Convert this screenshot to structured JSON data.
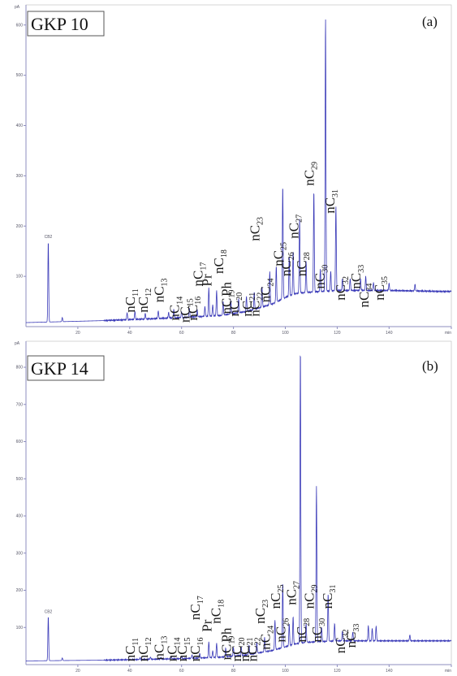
{
  "chart_data": [
    {
      "type": "line",
      "sample_label": "GKP 10",
      "panel_letter": "(a)",
      "y_unit": "pA",
      "x_ticks": [
        "20",
        "40",
        "60",
        "80",
        "100",
        "120",
        "140",
        "min"
      ],
      "y_ticks": [
        "100",
        "200",
        "300",
        "400",
        "500",
        "600"
      ],
      "xlim": [
        0,
        164
      ],
      "ylim": [
        0,
        640
      ],
      "standard_label": "CB2",
      "standard_peak": {
        "x": 8.6,
        "y": 170
      },
      "baseline": [
        [
          0,
          8
        ],
        [
          30,
          12
        ],
        [
          60,
          18
        ],
        [
          75,
          22
        ],
        [
          85,
          30
        ],
        [
          95,
          45
        ],
        [
          100,
          58
        ],
        [
          104,
          66
        ],
        [
          108,
          68
        ],
        [
          120,
          72
        ],
        [
          140,
          72
        ],
        [
          160,
          70
        ],
        [
          164,
          70
        ]
      ],
      "peaks": [
        {
          "x": 8.6,
          "y": 170
        },
        {
          "x": 14,
          "y": 18
        },
        {
          "x": 39,
          "y": 28
        },
        {
          "x": 42,
          "y": 30
        },
        {
          "x": 46,
          "y": 26
        },
        {
          "x": 51,
          "y": 32
        },
        {
          "x": 55,
          "y": 28
        },
        {
          "x": 57,
          "y": 34
        },
        {
          "x": 60,
          "y": 30
        },
        {
          "x": 63,
          "y": 36
        },
        {
          "x": 66,
          "y": 34
        },
        {
          "x": 69,
          "y": 40
        },
        {
          "x": 70.5,
          "y": 78
        },
        {
          "x": 72,
          "y": 44
        },
        {
          "x": 73.5,
          "y": 72
        },
        {
          "x": 76,
          "y": 50
        },
        {
          "x": 79,
          "y": 52
        },
        {
          "x": 82,
          "y": 56
        },
        {
          "x": 85,
          "y": 60
        },
        {
          "x": 88,
          "y": 68
        },
        {
          "x": 91,
          "y": 80
        },
        {
          "x": 94,
          "y": 110
        },
        {
          "x": 96.5,
          "y": 120
        },
        {
          "x": 99,
          "y": 280
        },
        {
          "x": 101.5,
          "y": 140
        },
        {
          "x": 103,
          "y": 150
        },
        {
          "x": 105.5,
          "y": 215
        },
        {
          "x": 108,
          "y": 130
        },
        {
          "x": 111,
          "y": 270
        },
        {
          "x": 113.5,
          "y": 115
        },
        {
          "x": 115.5,
          "y": 615
        },
        {
          "x": 117.5,
          "y": 110
        },
        {
          "x": 119.5,
          "y": 240
        },
        {
          "x": 122,
          "y": 95
        },
        {
          "x": 125,
          "y": 96
        },
        {
          "x": 129,
          "y": 95
        },
        {
          "x": 131,
          "y": 100
        },
        {
          "x": 134,
          "y": 88
        },
        {
          "x": 140,
          "y": 86
        },
        {
          "x": 150,
          "y": 84
        }
      ],
      "annotations": [
        {
          "main": "nC",
          "sub": "11",
          "x": 42,
          "y": 28
        },
        {
          "main": "nC",
          "sub": "12",
          "x": 47,
          "y": 28
        },
        {
          "main": "nC",
          "sub": "13",
          "x": 53,
          "y": 48
        },
        {
          "main": "nC",
          "sub": "14",
          "x": 59,
          "y": 12
        },
        {
          "main": "nC",
          "sub": "15",
          "x": 63,
          "y": 8
        },
        {
          "main": "nC",
          "sub": "16",
          "x": 66,
          "y": 12
        },
        {
          "main": "nC",
          "sub": "17",
          "x": 68,
          "y": 80
        },
        {
          "main": "Pr",
          "sub": "",
          "x": 71.5,
          "y": 80
        },
        {
          "main": "nC",
          "sub": "18",
          "x": 76,
          "y": 105
        },
        {
          "main": "Ph",
          "sub": "",
          "x": 79,
          "y": 60
        },
        {
          "main": "nC",
          "sub": "19",
          "x": 79,
          "y": 25
        },
        {
          "main": "nC",
          "sub": "20",
          "x": 82,
          "y": 20
        },
        {
          "main": "nC",
          "sub": "21",
          "x": 87,
          "y": 20
        },
        {
          "main": "nC",
          "sub": "22",
          "x": 90,
          "y": 20
        },
        {
          "main": "nC",
          "sub": "23",
          "x": 90,
          "y": 170
        },
        {
          "main": "nC",
          "sub": "24",
          "x": 94,
          "y": 48
        },
        {
          "main": "nC",
          "sub": "25",
          "x": 99,
          "y": 120
        },
        {
          "main": "nC",
          "sub": "26",
          "x": 102,
          "y": 100
        },
        {
          "main": "nC",
          "sub": "27",
          "x": 105,
          "y": 175
        },
        {
          "main": "nC",
          "sub": "28",
          "x": 108,
          "y": 100
        },
        {
          "main": "nC",
          "sub": "29",
          "x": 111,
          "y": 280
        },
        {
          "main": "nC",
          "sub": "30",
          "x": 115,
          "y": 75
        },
        {
          "main": "nC",
          "sub": "31",
          "x": 119,
          "y": 225
        },
        {
          "main": "nC",
          "sub": "32",
          "x": 123,
          "y": 52
        },
        {
          "main": "nC",
          "sub": "33",
          "x": 129,
          "y": 75
        },
        {
          "main": "nC",
          "sub": "34",
          "x": 132,
          "y": 38
        },
        {
          "main": "nC",
          "sub": "35",
          "x": 138,
          "y": 52
        }
      ]
    },
    {
      "type": "line",
      "sample_label": "GKP 14",
      "panel_letter": "(b)",
      "y_unit": "pA",
      "x_ticks": [
        "20",
        "40",
        "60",
        "80",
        "100",
        "120",
        "140",
        "min"
      ],
      "y_ticks": [
        "100",
        "200",
        "300",
        "400",
        "500",
        "600",
        "700",
        "800"
      ],
      "xlim": [
        0,
        164
      ],
      "ylim": [
        0,
        870
      ],
      "standard_label": "CB2",
      "standard_peak": {
        "x": 8.6,
        "y": 130
      },
      "baseline": [
        [
          0,
          10
        ],
        [
          30,
          12
        ],
        [
          60,
          16
        ],
        [
          75,
          20
        ],
        [
          85,
          26
        ],
        [
          95,
          38
        ],
        [
          100,
          48
        ],
        [
          104,
          56
        ],
        [
          108,
          60
        ],
        [
          120,
          64
        ],
        [
          140,
          64
        ],
        [
          160,
          64
        ],
        [
          164,
          64
        ]
      ],
      "peaks": [
        {
          "x": 8.6,
          "y": 130
        },
        {
          "x": 14,
          "y": 18
        },
        {
          "x": 44,
          "y": 18
        },
        {
          "x": 48,
          "y": 20
        },
        {
          "x": 52,
          "y": 20
        },
        {
          "x": 56,
          "y": 22
        },
        {
          "x": 60,
          "y": 22
        },
        {
          "x": 64,
          "y": 26
        },
        {
          "x": 67,
          "y": 30
        },
        {
          "x": 70.5,
          "y": 62
        },
        {
          "x": 72,
          "y": 38
        },
        {
          "x": 73.5,
          "y": 58
        },
        {
          "x": 77,
          "y": 44
        },
        {
          "x": 80,
          "y": 46
        },
        {
          "x": 83,
          "y": 48
        },
        {
          "x": 86,
          "y": 52
        },
        {
          "x": 89,
          "y": 60
        },
        {
          "x": 92,
          "y": 74
        },
        {
          "x": 96,
          "y": 120
        },
        {
          "x": 99,
          "y": 220
        },
        {
          "x": 101.5,
          "y": 110
        },
        {
          "x": 103,
          "y": 130
        },
        {
          "x": 105.8,
          "y": 855
        },
        {
          "x": 108,
          "y": 110
        },
        {
          "x": 112,
          "y": 480
        },
        {
          "x": 114,
          "y": 100
        },
        {
          "x": 116.5,
          "y": 190
        },
        {
          "x": 119,
          "y": 110
        },
        {
          "x": 122,
          "y": 90
        },
        {
          "x": 126,
          "y": 88
        },
        {
          "x": 132,
          "y": 105
        },
        {
          "x": 133.5,
          "y": 98
        },
        {
          "x": 135,
          "y": 104
        },
        {
          "x": 148,
          "y": 80
        }
      ],
      "annotations": [
        {
          "main": "nC",
          "sub": "11",
          "x": 42,
          "y": 8
        },
        {
          "main": "nC",
          "sub": "12",
          "x": 47,
          "y": 8
        },
        {
          "main": "nC",
          "sub": "13",
          "x": 53,
          "y": 12
        },
        {
          "main": "nC",
          "sub": "14",
          "x": 58,
          "y": 8
        },
        {
          "main": "nC",
          "sub": "15",
          "x": 62,
          "y": 8
        },
        {
          "main": "nC",
          "sub": "16",
          "x": 67,
          "y": 8
        },
        {
          "main": "nC",
          "sub": "17",
          "x": 67,
          "y": 120
        },
        {
          "main": "Pr",
          "sub": "",
          "x": 71.5,
          "y": 88
        },
        {
          "main": "nC",
          "sub": "18",
          "x": 75,
          "y": 110
        },
        {
          "main": "Ph",
          "sub": "",
          "x": 79,
          "y": 60
        },
        {
          "main": "nC",
          "sub": "19",
          "x": 79,
          "y": 12
        },
        {
          "main": "nC",
          "sub": "20",
          "x": 83,
          "y": 8
        },
        {
          "main": "nC",
          "sub": "21",
          "x": 86,
          "y": 8
        },
        {
          "main": "nC",
          "sub": "22",
          "x": 89,
          "y": 8
        },
        {
          "main": "nC",
          "sub": "23",
          "x": 92,
          "y": 110
        },
        {
          "main": "nC",
          "sub": "24",
          "x": 94,
          "y": 40
        },
        {
          "main": "nC",
          "sub": "25",
          "x": 98,
          "y": 150
        },
        {
          "main": "nC",
          "sub": "26",
          "x": 100,
          "y": 60
        },
        {
          "main": "nC",
          "sub": "27",
          "x": 104,
          "y": 160
        },
        {
          "main": "nC",
          "sub": "28",
          "x": 108,
          "y": 60
        },
        {
          "main": "nC",
          "sub": "29",
          "x": 111,
          "y": 150
        },
        {
          "main": "nC",
          "sub": "30",
          "x": 114,
          "y": 60
        },
        {
          "main": "nC",
          "sub": "31",
          "x": 118,
          "y": 150
        },
        {
          "main": "nC",
          "sub": "32",
          "x": 123,
          "y": 30
        },
        {
          "main": "nC",
          "sub": "33",
          "x": 127,
          "y": 45
        }
      ]
    }
  ]
}
